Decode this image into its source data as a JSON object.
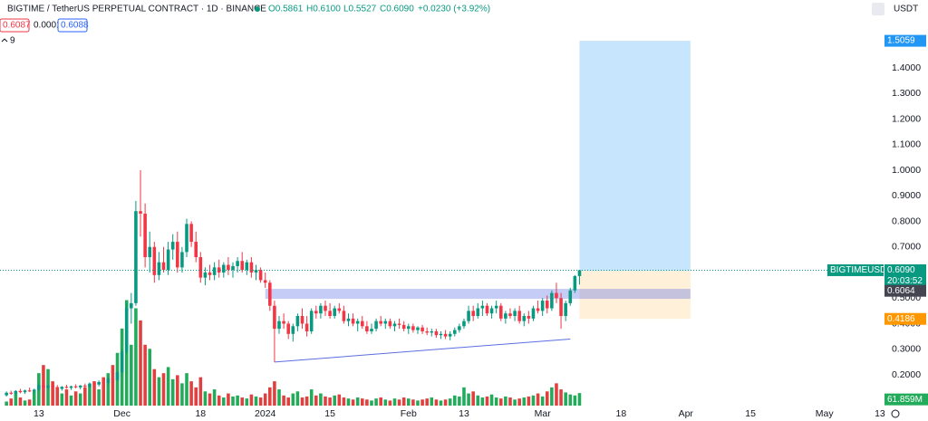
{
  "header": {
    "title": "BIGTIME / TetherUS PERPETUAL CONTRACT · 1D · BINANCE",
    "open": "O0.5861",
    "high": "H0.6100",
    "low": "L0.5527",
    "close": "C0.6090",
    "change": "+0.0230 (+3.92%)",
    "bid": "0.6087",
    "spread": "0.0001",
    "ask": "0.6088",
    "indicators": "9",
    "currency": "USDT"
  },
  "chart_data": {
    "type": "candlestick",
    "xlim": [
      -8.4,
      182.8
    ],
    "ylim": [
      0.0796,
      1.6655
    ],
    "volume_ylim": [
      0,
      2000
    ],
    "grid": false,
    "up_color": "#089981",
    "down_color": "#f23645",
    "volume_up_color": "#22ab5a",
    "volume_down_color": "#e0403f",
    "xticks": [
      {
        "value": 0,
        "label": "13"
      },
      {
        "value": 18,
        "label": "Dec"
      },
      {
        "value": 35,
        "label": "18"
      },
      {
        "value": 49,
        "label": "2024"
      },
      {
        "value": 63,
        "label": "15"
      },
      {
        "value": 80,
        "label": "Feb"
      },
      {
        "value": 92,
        "label": "13"
      },
      {
        "value": 109,
        "label": "Mar"
      },
      {
        "value": 126,
        "label": "18"
      },
      {
        "value": 140,
        "label": "Apr"
      },
      {
        "value": 154,
        "label": "15"
      },
      {
        "value": 170,
        "label": "May"
      },
      {
        "value": 182,
        "label": "13"
      }
    ],
    "yticks": [
      {
        "value": 0.2,
        "label": "0.2000"
      },
      {
        "value": 0.3,
        "label": "0.3000"
      },
      {
        "value": 0.4,
        "label": "0.4000"
      },
      {
        "value": 0.5,
        "label": "0.5000"
      },
      {
        "value": 0.7,
        "label": "0.7000"
      },
      {
        "value": 0.8,
        "label": "0.8000"
      },
      {
        "value": 0.9,
        "label": "0.9000"
      },
      {
        "value": 1.0,
        "label": "1.0000"
      },
      {
        "value": 1.1,
        "label": "1.1000"
      },
      {
        "value": 1.2,
        "label": "1.2000"
      },
      {
        "value": 1.3,
        "label": "1.3000"
      },
      {
        "value": 1.4,
        "label": "1.4000"
      }
    ],
    "x": [
      -7,
      -6,
      -5,
      -4,
      -3,
      -2,
      -1,
      0,
      1,
      2,
      3,
      4,
      5,
      6,
      7,
      8,
      9,
      10,
      11,
      12,
      13,
      14,
      15,
      16,
      17,
      18,
      19,
      20,
      21,
      22,
      23,
      24,
      25,
      26,
      27,
      28,
      29,
      30,
      31,
      32,
      33,
      34,
      35,
      36,
      37,
      38,
      39,
      40,
      41,
      42,
      43,
      44,
      45,
      46,
      47,
      48,
      49,
      50,
      51,
      52,
      53,
      54,
      55,
      56,
      57,
      58,
      59,
      60,
      61,
      62,
      63,
      64,
      65,
      66,
      67,
      68,
      69,
      70,
      71,
      72,
      73,
      74,
      75,
      76,
      77,
      78,
      79,
      80,
      81,
      82,
      83,
      84,
      85,
      86,
      87,
      88,
      89,
      90,
      91,
      92,
      93,
      94,
      95,
      96,
      97,
      98,
      99,
      100,
      101,
      102,
      103,
      104,
      105,
      106,
      107,
      108,
      109,
      110,
      111,
      112,
      113,
      114,
      115,
      116,
      117
    ],
    "candles": [
      [
        0.12,
        0.135,
        0.115,
        0.13
      ],
      [
        0.13,
        0.138,
        0.122,
        0.126
      ],
      [
        0.126,
        0.14,
        0.12,
        0.137
      ],
      [
        0.137,
        0.145,
        0.128,
        0.132
      ],
      [
        0.132,
        0.142,
        0.125,
        0.139
      ],
      [
        0.139,
        0.15,
        0.133,
        0.135
      ],
      [
        0.135,
        0.146,
        0.128,
        0.142
      ],
      [
        0.142,
        0.168,
        0.138,
        0.16
      ],
      [
        0.16,
        0.172,
        0.145,
        0.15
      ],
      [
        0.15,
        0.162,
        0.142,
        0.157
      ],
      [
        0.157,
        0.165,
        0.148,
        0.152
      ],
      [
        0.152,
        0.16,
        0.14,
        0.145
      ],
      [
        0.145,
        0.156,
        0.138,
        0.153
      ],
      [
        0.153,
        0.161,
        0.146,
        0.149
      ],
      [
        0.149,
        0.158,
        0.141,
        0.155
      ],
      [
        0.155,
        0.163,
        0.147,
        0.151
      ],
      [
        0.151,
        0.16,
        0.143,
        0.158
      ],
      [
        0.158,
        0.166,
        0.15,
        0.154
      ],
      [
        0.154,
        0.17,
        0.15,
        0.166
      ],
      [
        0.166,
        0.175,
        0.158,
        0.162
      ],
      [
        0.162,
        0.178,
        0.155,
        0.172
      ],
      [
        0.172,
        0.182,
        0.164,
        0.168
      ],
      [
        0.168,
        0.19,
        0.162,
        0.185
      ],
      [
        0.185,
        0.2,
        0.175,
        0.18
      ],
      [
        0.18,
        0.215,
        0.176,
        0.21
      ],
      [
        0.21,
        0.3,
        0.205,
        0.29
      ],
      [
        0.29,
        0.48,
        0.28,
        0.46
      ],
      [
        0.46,
        0.52,
        0.4,
        0.48
      ],
      [
        0.48,
        0.88,
        0.47,
        0.84
      ],
      [
        0.84,
        1.0,
        0.74,
        0.83
      ],
      [
        0.83,
        0.87,
        0.62,
        0.66
      ],
      [
        0.66,
        0.76,
        0.6,
        0.7
      ],
      [
        0.7,
        0.72,
        0.56,
        0.59
      ],
      [
        0.59,
        0.68,
        0.57,
        0.64
      ],
      [
        0.64,
        0.7,
        0.6,
        0.61
      ],
      [
        0.61,
        0.72,
        0.59,
        0.69
      ],
      [
        0.69,
        0.75,
        0.65,
        0.72
      ],
      [
        0.72,
        0.76,
        0.6,
        0.62
      ],
      [
        0.62,
        0.7,
        0.6,
        0.68
      ],
      [
        0.68,
        0.81,
        0.66,
        0.79
      ],
      [
        0.79,
        0.8,
        0.7,
        0.72
      ],
      [
        0.72,
        0.76,
        0.64,
        0.66
      ],
      [
        0.66,
        0.68,
        0.56,
        0.58
      ],
      [
        0.58,
        0.62,
        0.55,
        0.6
      ],
      [
        0.6,
        0.63,
        0.57,
        0.59
      ],
      [
        0.59,
        0.64,
        0.57,
        0.62
      ],
      [
        0.62,
        0.65,
        0.58,
        0.6
      ],
      [
        0.6,
        0.64,
        0.58,
        0.63
      ],
      [
        0.63,
        0.66,
        0.59,
        0.61
      ],
      [
        0.61,
        0.64,
        0.58,
        0.625
      ],
      [
        0.625,
        0.66,
        0.6,
        0.645
      ],
      [
        0.645,
        0.68,
        0.6,
        0.61
      ],
      [
        0.61,
        0.65,
        0.59,
        0.64
      ],
      [
        0.64,
        0.66,
        0.58,
        0.6
      ],
      [
        0.6,
        0.63,
        0.57,
        0.61
      ],
      [
        0.61,
        0.62,
        0.56,
        0.57
      ],
      [
        0.57,
        0.6,
        0.54,
        0.56
      ],
      [
        0.56,
        0.57,
        0.45,
        0.47
      ],
      [
        0.47,
        0.49,
        0.25,
        0.38
      ],
      [
        0.38,
        0.43,
        0.36,
        0.41
      ],
      [
        0.41,
        0.44,
        0.38,
        0.4
      ],
      [
        0.4,
        0.41,
        0.34,
        0.36
      ],
      [
        0.36,
        0.4,
        0.33,
        0.39
      ],
      [
        0.39,
        0.44,
        0.37,
        0.43
      ],
      [
        0.43,
        0.46,
        0.38,
        0.4
      ],
      [
        0.4,
        0.43,
        0.35,
        0.37
      ],
      [
        0.37,
        0.46,
        0.36,
        0.45
      ],
      [
        0.45,
        0.47,
        0.42,
        0.44
      ],
      [
        0.44,
        0.48,
        0.42,
        0.47
      ],
      [
        0.47,
        0.49,
        0.43,
        0.45
      ],
      [
        0.45,
        0.48,
        0.42,
        0.43
      ],
      [
        0.43,
        0.47,
        0.42,
        0.46
      ],
      [
        0.46,
        0.48,
        0.44,
        0.45
      ],
      [
        0.45,
        0.47,
        0.4,
        0.41
      ],
      [
        0.41,
        0.44,
        0.39,
        0.42
      ],
      [
        0.42,
        0.44,
        0.39,
        0.4
      ],
      [
        0.4,
        0.42,
        0.37,
        0.41
      ],
      [
        0.41,
        0.43,
        0.38,
        0.39
      ],
      [
        0.39,
        0.41,
        0.36,
        0.37
      ],
      [
        0.37,
        0.4,
        0.36,
        0.38
      ],
      [
        0.38,
        0.42,
        0.37,
        0.41
      ],
      [
        0.41,
        0.43,
        0.39,
        0.4
      ],
      [
        0.4,
        0.42,
        0.38,
        0.41
      ],
      [
        0.41,
        0.42,
        0.38,
        0.39
      ],
      [
        0.39,
        0.41,
        0.37,
        0.4
      ],
      [
        0.4,
        0.42,
        0.38,
        0.395
      ],
      [
        0.395,
        0.41,
        0.37,
        0.38
      ],
      [
        0.38,
        0.4,
        0.36,
        0.39
      ],
      [
        0.39,
        0.4,
        0.365,
        0.375
      ],
      [
        0.375,
        0.39,
        0.36,
        0.385
      ],
      [
        0.385,
        0.395,
        0.36,
        0.37
      ],
      [
        0.37,
        0.385,
        0.355,
        0.365
      ],
      [
        0.365,
        0.38,
        0.35,
        0.37
      ],
      [
        0.37,
        0.38,
        0.345,
        0.355
      ],
      [
        0.355,
        0.37,
        0.34,
        0.36
      ],
      [
        0.36,
        0.375,
        0.34,
        0.35
      ],
      [
        0.35,
        0.37,
        0.335,
        0.36
      ],
      [
        0.36,
        0.385,
        0.35,
        0.375
      ],
      [
        0.375,
        0.4,
        0.365,
        0.39
      ],
      [
        0.39,
        0.42,
        0.38,
        0.41
      ],
      [
        0.41,
        0.47,
        0.4,
        0.45
      ],
      [
        0.45,
        0.47,
        0.41,
        0.43
      ],
      [
        0.43,
        0.48,
        0.42,
        0.46
      ],
      [
        0.46,
        0.49,
        0.43,
        0.47
      ],
      [
        0.47,
        0.48,
        0.43,
        0.44
      ],
      [
        0.44,
        0.47,
        0.42,
        0.46
      ],
      [
        0.46,
        0.49,
        0.44,
        0.47
      ],
      [
        0.47,
        0.48,
        0.41,
        0.42
      ],
      [
        0.42,
        0.45,
        0.4,
        0.44
      ],
      [
        0.44,
        0.46,
        0.42,
        0.43
      ],
      [
        0.43,
        0.46,
        0.41,
        0.45
      ],
      [
        0.45,
        0.47,
        0.4,
        0.41
      ],
      [
        0.41,
        0.44,
        0.39,
        0.43
      ],
      [
        0.43,
        0.45,
        0.4,
        0.42
      ],
      [
        0.42,
        0.47,
        0.41,
        0.46
      ],
      [
        0.46,
        0.49,
        0.44,
        0.45
      ],
      [
        0.45,
        0.5,
        0.43,
        0.49
      ],
      [
        0.49,
        0.51,
        0.44,
        0.46
      ],
      [
        0.46,
        0.53,
        0.45,
        0.52
      ],
      [
        0.52,
        0.56,
        0.48,
        0.5
      ],
      [
        0.5,
        0.52,
        0.38,
        0.43
      ],
      [
        0.43,
        0.49,
        0.41,
        0.48
      ],
      [
        0.48,
        0.54,
        0.47,
        0.53
      ],
      [
        0.53,
        0.59,
        0.52,
        0.586
      ],
      [
        0.5861,
        0.61,
        0.5527,
        0.609
      ]
    ],
    "volume": [
      20,
      35,
      60,
      40,
      25,
      30,
      70,
      160,
      200,
      180,
      120,
      90,
      60,
      80,
      50,
      70,
      60,
      90,
      100,
      120,
      80,
      140,
      160,
      200,
      260,
      380,
      520,
      300,
      480,
      420,
      300,
      280,
      180,
      140,
      160,
      190,
      130,
      150,
      110,
      160,
      120,
      90,
      140,
      70,
      60,
      80,
      50,
      40,
      60,
      45,
      50,
      40,
      35,
      55,
      45,
      40,
      60,
      90,
      120,
      80,
      50,
      40,
      60,
      70,
      40,
      45,
      80,
      50,
      60,
      45,
      40,
      50,
      55,
      40,
      35,
      30,
      40,
      35,
      30,
      25,
      35,
      40,
      30,
      25,
      35,
      30,
      40,
      35,
      30,
      25,
      30,
      35,
      40,
      30,
      25,
      30,
      35,
      50,
      45,
      90,
      60,
      70,
      50,
      40,
      45,
      55,
      40,
      35,
      45,
      40,
      30,
      35,
      40,
      45,
      50,
      60,
      45,
      70,
      90,
      110,
      80,
      65,
      55,
      50,
      61.859
    ],
    "zone": {
      "low": 0.497,
      "high": 0.536,
      "x_range": [
        49,
        141
      ]
    },
    "trendline": {
      "from": [
        51,
        0.25
      ],
      "to": [
        115,
        0.34
      ]
    },
    "position": {
      "entry": 0.6064,
      "target": 1.5059,
      "stop": 0.4186,
      "x_range": [
        117,
        141
      ]
    },
    "axis_labels": {
      "target": "1.5059",
      "symbol": "BIGTIMEUSDT.P",
      "last": "0.6090",
      "countdown": "20:03:52",
      "entry": "0.6064",
      "stop": "0.4186",
      "volume": "61.859M"
    }
  }
}
